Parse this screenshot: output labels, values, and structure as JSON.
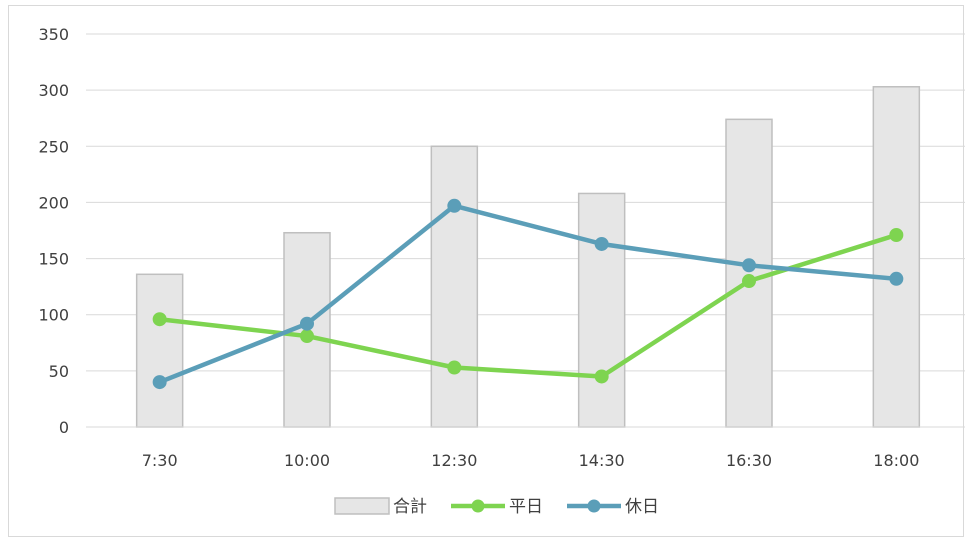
{
  "chart_data": {
    "type": "bar+line",
    "categories": [
      "7:30",
      "10:00",
      "12:30",
      "14:30",
      "16:30",
      "18:00"
    ],
    "ylim": [
      0,
      350
    ],
    "yticks": [
      0,
      50,
      100,
      150,
      200,
      250,
      300,
      350
    ],
    "grid": true,
    "legend_position": "bottom",
    "series": [
      {
        "name": "合計",
        "kind": "bar",
        "color": "#e6e6e6",
        "stroke": "#bfbfbf",
        "values": [
          136,
          173,
          250,
          208,
          274,
          303
        ]
      },
      {
        "name": "平日",
        "kind": "line",
        "color": "#7ed450",
        "values": [
          96,
          81,
          53,
          45,
          130,
          171
        ]
      },
      {
        "name": "休日",
        "kind": "line",
        "color": "#5b9eb8",
        "values": [
          40,
          92,
          197,
          163,
          144,
          132
        ]
      }
    ]
  }
}
